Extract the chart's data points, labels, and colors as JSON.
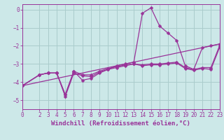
{
  "bg_color": "#cce8e8",
  "grid_color": "#aacccc",
  "line_color": "#993399",
  "xlim": [
    0,
    23
  ],
  "ylim": [
    -5.5,
    0.3
  ],
  "yticks": [
    0,
    -1,
    -2,
    -3,
    -4,
    -5
  ],
  "xticks": [
    0,
    2,
    3,
    4,
    5,
    6,
    7,
    8,
    9,
    10,
    11,
    12,
    13,
    14,
    15,
    16,
    17,
    18,
    19,
    20,
    21,
    22,
    23
  ],
  "xlabel": "Windchill (Refroidissement éolien,°C)",
  "series": [
    {
      "x": [
        0,
        2,
        3,
        4,
        5,
        6,
        7,
        8,
        9,
        10,
        11,
        12,
        13,
        14,
        15,
        16,
        17,
        18,
        19,
        20,
        21,
        22,
        23
      ],
      "y": [
        -4.2,
        -3.6,
        -3.5,
        -3.5,
        -4.7,
        -3.4,
        -3.9,
        -3.8,
        -3.5,
        -3.3,
        -3.1,
        -3.0,
        -2.9,
        -0.2,
        0.1,
        -0.9,
        -1.3,
        -1.7,
        -3.1,
        -3.3,
        -2.1,
        -2.0,
        -1.9
      ],
      "with_markers": true
    },
    {
      "x": [
        0,
        23
      ],
      "y": [
        -4.2,
        -1.9
      ],
      "with_markers": false
    },
    {
      "x": [
        0,
        2,
        3,
        4,
        5,
        6,
        7,
        8,
        9,
        10,
        11,
        12,
        13,
        14,
        15,
        16,
        17,
        18,
        19,
        20,
        21,
        22,
        23
      ],
      "y": [
        -4.2,
        -3.6,
        -3.5,
        -3.5,
        -4.7,
        -3.4,
        -3.6,
        -3.6,
        -3.4,
        -3.25,
        -3.15,
        -3.05,
        -3.0,
        -3.05,
        -3.0,
        -3.0,
        -2.95,
        -2.9,
        -3.2,
        -3.3,
        -3.2,
        -3.2,
        -2.0
      ],
      "with_markers": true
    },
    {
      "x": [
        0,
        2,
        3,
        4,
        5,
        6,
        7,
        8,
        9,
        10,
        11,
        12,
        13,
        14,
        15,
        16,
        17,
        18,
        19,
        20,
        21,
        22,
        23
      ],
      "y": [
        -4.2,
        -3.6,
        -3.5,
        -3.5,
        -4.8,
        -3.5,
        -3.65,
        -3.7,
        -3.45,
        -3.3,
        -3.2,
        -3.1,
        -3.0,
        -3.1,
        -3.05,
        -3.05,
        -3.0,
        -2.95,
        -3.25,
        -3.35,
        -3.25,
        -3.3,
        -2.1
      ],
      "with_markers": true
    }
  ],
  "marker": "D",
  "markersize": 2.5,
  "linewidth": 0.9,
  "font_color": "#993399",
  "tick_fontsize": 5.5,
  "label_fontsize": 6.5
}
